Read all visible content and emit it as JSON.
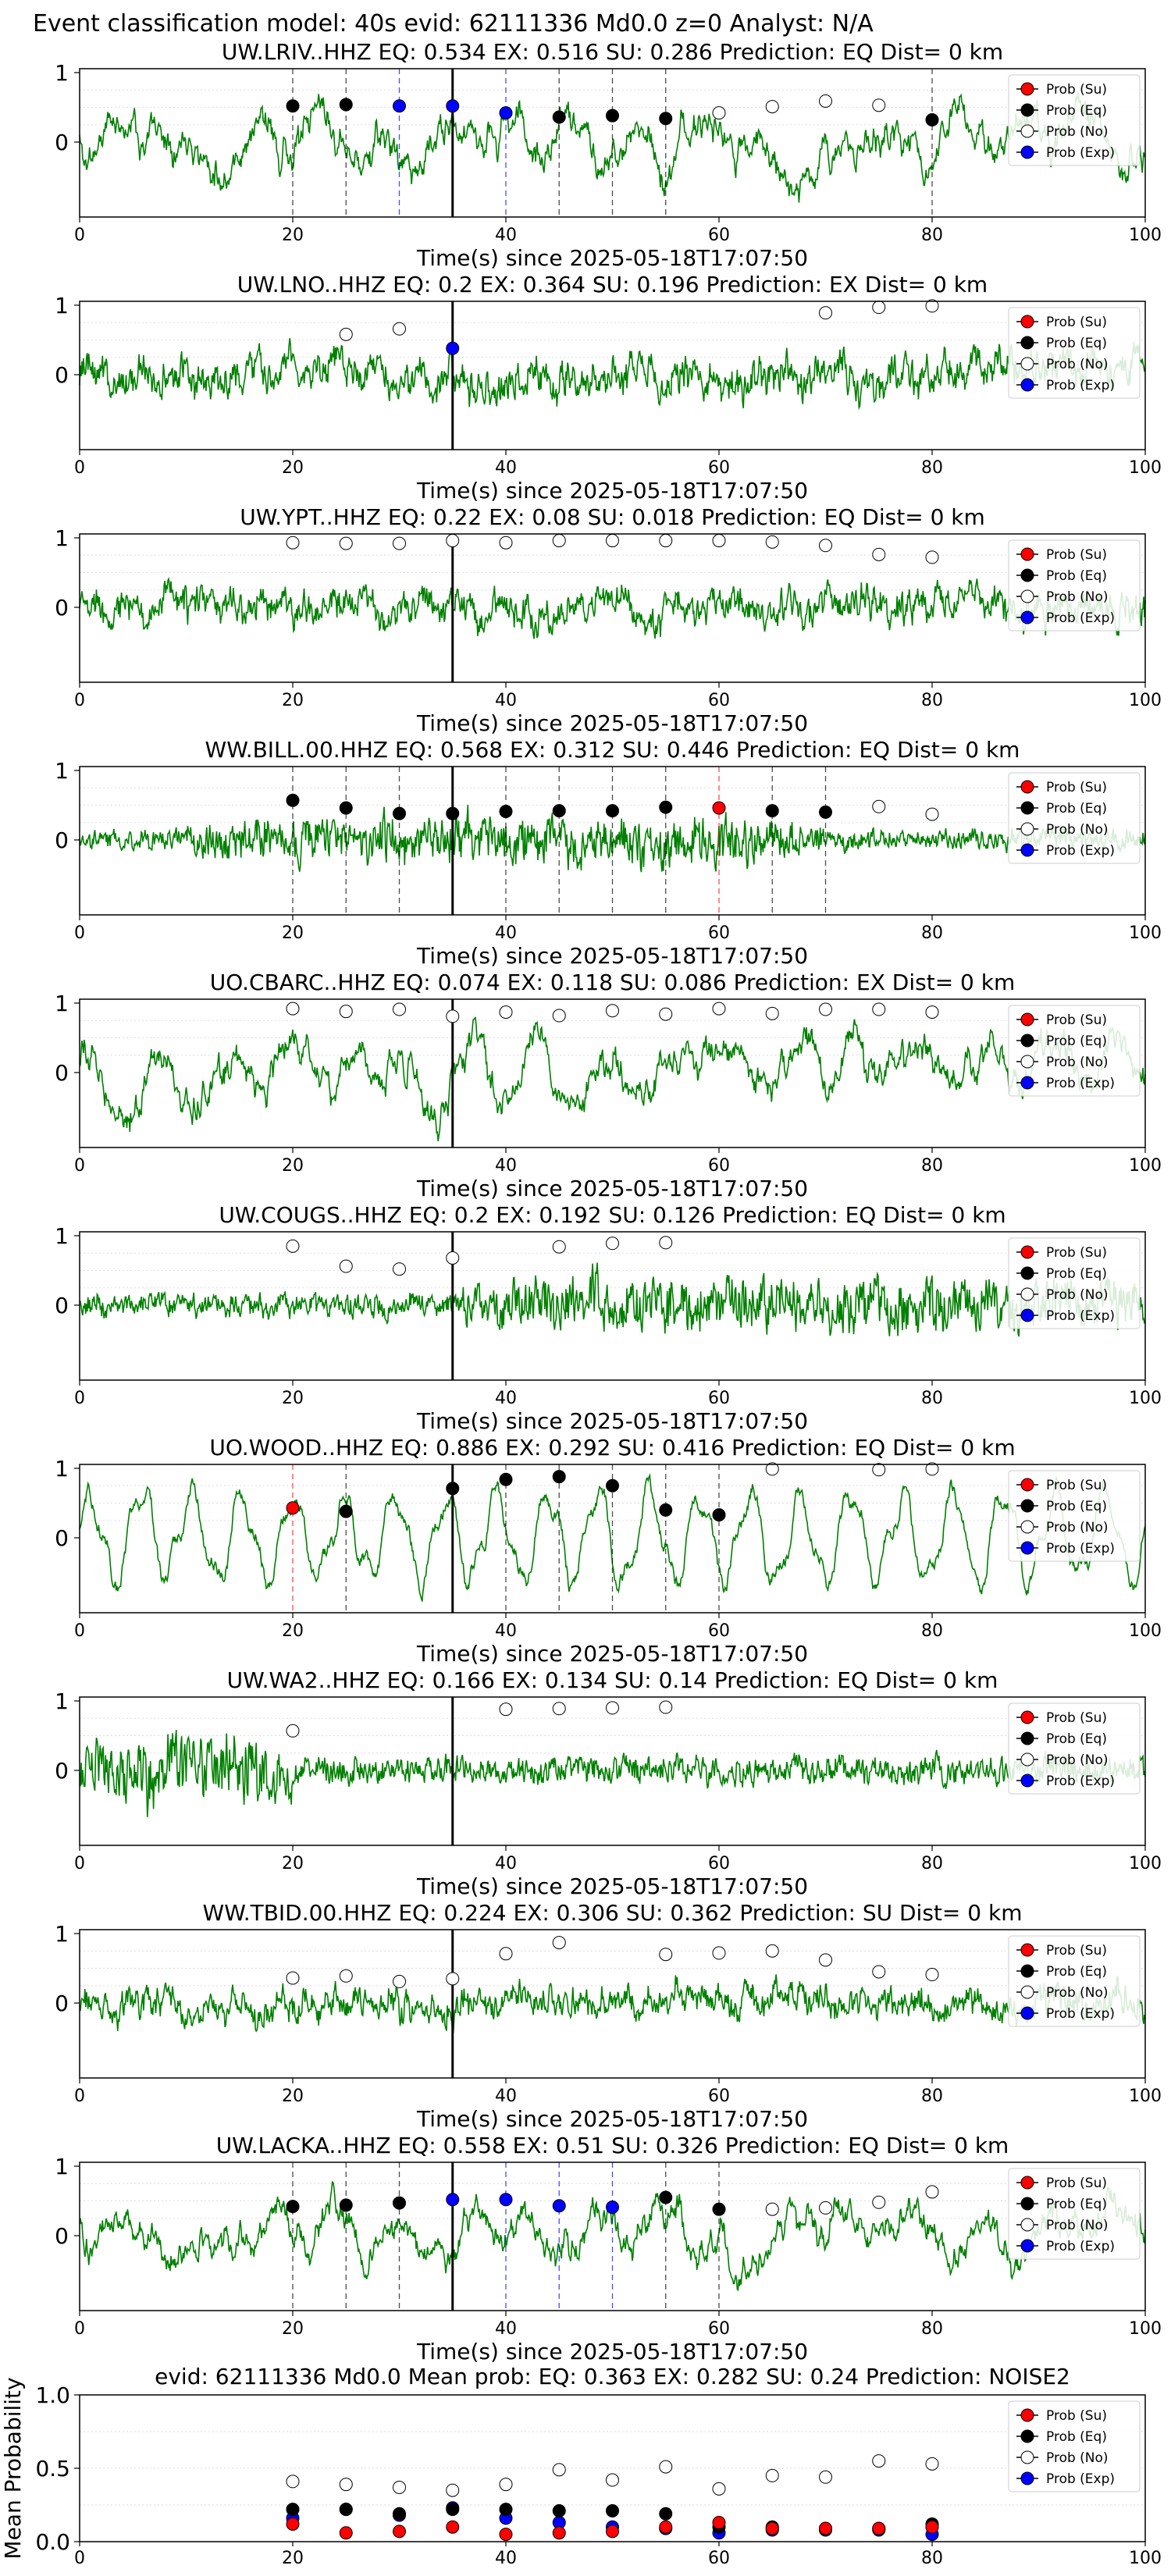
{
  "figure": {
    "suptitle": "Event classification model: 40s evid: 62111336 Md0.0 z=0 Analyst: N/A"
  },
  "legend_labels": [
    "Prob (Su)",
    "Prob (Eq)",
    "Prob (No)",
    "Prob (Exp)"
  ],
  "colors": {
    "waveform": "#008000",
    "su": "#ff0000",
    "eq": "#000000",
    "no": "#ffffff",
    "exp": "#0000ff",
    "grid": "#dddddd"
  },
  "chart_data": [
    {
      "type": "line",
      "title": "UW.LRIV..HHZ   EQ: 0.534  EX: 0.516  SU: 0.286   Prediction: EQ    Dist= 0 km",
      "xlabel": "Time(s) since 2025-05-18T17:07:50",
      "xlim": [
        0,
        100
      ],
      "xticks": [
        "0",
        "20",
        "40",
        "60",
        "80",
        "100"
      ],
      "yticks": [
        "1",
        "0"
      ],
      "arrival": 35,
      "waveform": {
        "amplitude": 0.6,
        "style": "lowfreq",
        "seed": 11
      },
      "markers": [
        {
          "t": 20,
          "c": "eq",
          "y": 0.52
        },
        {
          "t": 25,
          "c": "eq",
          "y": 0.54
        },
        {
          "t": 30,
          "c": "exp",
          "y": 0.52
        },
        {
          "t": 35,
          "c": "exp",
          "y": 0.52
        },
        {
          "t": 40,
          "c": "exp",
          "y": 0.42
        },
        {
          "t": 45,
          "c": "eq",
          "y": 0.36
        },
        {
          "t": 50,
          "c": "eq",
          "y": 0.38
        },
        {
          "t": 55,
          "c": "eq",
          "y": 0.34
        },
        {
          "t": 60,
          "c": "no",
          "y": 0.42
        },
        {
          "t": 65,
          "c": "no",
          "y": 0.51
        },
        {
          "t": 70,
          "c": "no",
          "y": 0.59
        },
        {
          "t": 75,
          "c": "no",
          "y": 0.53
        },
        {
          "t": 80,
          "c": "eq",
          "y": 0.32
        }
      ]
    },
    {
      "type": "line",
      "title": "UW.LNO..HHZ   EQ: 0.2  EX: 0.364  SU: 0.196   Prediction: EX    Dist= 0 km",
      "xlabel": "Time(s) since 2025-05-18T17:07:50",
      "xlim": [
        0,
        100
      ],
      "xticks": [
        "0",
        "20",
        "40",
        "60",
        "80",
        "100"
      ],
      "yticks": [
        "1",
        "0"
      ],
      "arrival": 35,
      "waveform": {
        "amplitude": 0.55,
        "style": "mid",
        "seed": 23
      },
      "markers": [
        {
          "t": 25,
          "c": "no",
          "y": 0.58
        },
        {
          "t": 30,
          "c": "no",
          "y": 0.66
        },
        {
          "t": 35,
          "c": "exp",
          "y": 0.38
        },
        {
          "t": 70,
          "c": "no",
          "y": 0.89
        },
        {
          "t": 75,
          "c": "no",
          "y": 0.97
        },
        {
          "t": 80,
          "c": "no",
          "y": 0.99
        }
      ]
    },
    {
      "type": "line",
      "title": "UW.YPT..HHZ   EQ: 0.22  EX: 0.08  SU: 0.018   Prediction: EQ    Dist= 0 km",
      "xlabel": "Time(s) since 2025-05-18T17:07:50",
      "xlim": [
        0,
        100
      ],
      "xticks": [
        "0",
        "20",
        "40",
        "60",
        "80",
        "100"
      ],
      "yticks": [
        "1",
        "0"
      ],
      "arrival": 35,
      "waveform": {
        "amplitude": 0.5,
        "style": "mid",
        "seed": 37
      },
      "markers": [
        {
          "t": 20,
          "c": "no",
          "y": 0.93
        },
        {
          "t": 25,
          "c": "no",
          "y": 0.92
        },
        {
          "t": 30,
          "c": "no",
          "y": 0.92
        },
        {
          "t": 35,
          "c": "no",
          "y": 0.96
        },
        {
          "t": 40,
          "c": "no",
          "y": 0.93
        },
        {
          "t": 45,
          "c": "no",
          "y": 0.96
        },
        {
          "t": 50,
          "c": "no",
          "y": 0.96
        },
        {
          "t": 55,
          "c": "no",
          "y": 0.96
        },
        {
          "t": 60,
          "c": "no",
          "y": 0.96
        },
        {
          "t": 65,
          "c": "no",
          "y": 0.94
        },
        {
          "t": 70,
          "c": "no",
          "y": 0.89
        },
        {
          "t": 75,
          "c": "no",
          "y": 0.76
        },
        {
          "t": 80,
          "c": "no",
          "y": 0.72
        }
      ]
    },
    {
      "type": "line",
      "title": "WW.BILL.00.HHZ   EQ: 0.568  EX: 0.312  SU: 0.446   Prediction: EQ    Dist= 0 km",
      "xlabel": "Time(s) since 2025-05-18T17:07:50",
      "xlim": [
        0,
        100
      ],
      "xticks": [
        "0",
        "20",
        "40",
        "60",
        "80",
        "100"
      ],
      "yticks": [
        "1",
        "0"
      ],
      "arrival": 35,
      "waveform": {
        "amplitude": 0.25,
        "style": "burst",
        "seed": 41,
        "burst": [
          [
            10,
            70,
            2.6
          ]
        ]
      },
      "markers": [
        {
          "t": 20,
          "c": "eq",
          "y": 0.57
        },
        {
          "t": 25,
          "c": "eq",
          "y": 0.46
        },
        {
          "t": 30,
          "c": "eq",
          "y": 0.38
        },
        {
          "t": 35,
          "c": "eq",
          "y": 0.38
        },
        {
          "t": 40,
          "c": "eq",
          "y": 0.41
        },
        {
          "t": 45,
          "c": "eq",
          "y": 0.42
        },
        {
          "t": 50,
          "c": "eq",
          "y": 0.42
        },
        {
          "t": 55,
          "c": "eq",
          "y": 0.47
        },
        {
          "t": 60,
          "c": "su",
          "y": 0.46
        },
        {
          "t": 65,
          "c": "eq",
          "y": 0.42
        },
        {
          "t": 70,
          "c": "eq",
          "y": 0.4
        },
        {
          "t": 75,
          "c": "no",
          "y": 0.48
        },
        {
          "t": 80,
          "c": "no",
          "y": 0.37
        }
      ]
    },
    {
      "type": "line",
      "title": "UO.CBARC..HHZ   EQ: 0.074  EX: 0.118  SU: 0.086   Prediction: EX    Dist= 0 km",
      "xlabel": "Time(s) since 2025-05-18T17:07:50",
      "xlim": [
        0,
        100
      ],
      "xticks": [
        "0",
        "20",
        "40",
        "60",
        "80",
        "100"
      ],
      "yticks": [
        "1",
        "0"
      ],
      "arrival": 35,
      "waveform": {
        "amplitude": 0.6,
        "style": "lowfreq",
        "seed": 53
      },
      "markers": [
        {
          "t": 20,
          "c": "no",
          "y": 0.92
        },
        {
          "t": 25,
          "c": "no",
          "y": 0.88
        },
        {
          "t": 30,
          "c": "no",
          "y": 0.91
        },
        {
          "t": 35,
          "c": "no",
          "y": 0.81
        },
        {
          "t": 40,
          "c": "no",
          "y": 0.87
        },
        {
          "t": 45,
          "c": "no",
          "y": 0.82
        },
        {
          "t": 50,
          "c": "no",
          "y": 0.89
        },
        {
          "t": 55,
          "c": "no",
          "y": 0.84
        },
        {
          "t": 60,
          "c": "no",
          "y": 0.92
        },
        {
          "t": 65,
          "c": "no",
          "y": 0.85
        },
        {
          "t": 70,
          "c": "no",
          "y": 0.91
        },
        {
          "t": 75,
          "c": "no",
          "y": 0.91
        },
        {
          "t": 80,
          "c": "no",
          "y": 0.87
        }
      ]
    },
    {
      "type": "line",
      "title": "UW.COUGS..HHZ   EQ: 0.2  EX: 0.192  SU: 0.126   Prediction: EQ    Dist= 0 km",
      "xlabel": "Time(s) since 2025-05-18T17:07:50",
      "xlim": [
        0,
        100
      ],
      "xticks": [
        "0",
        "20",
        "40",
        "60",
        "80",
        "100"
      ],
      "yticks": [
        "1",
        "0"
      ],
      "arrival": 35,
      "waveform": {
        "amplitude": 0.3,
        "style": "burst",
        "seed": 67,
        "burst": [
          [
            36,
            100,
            2.4
          ]
        ]
      },
      "markers": [
        {
          "t": 20,
          "c": "no",
          "y": 0.85
        },
        {
          "t": 25,
          "c": "no",
          "y": 0.56
        },
        {
          "t": 30,
          "c": "no",
          "y": 0.52
        },
        {
          "t": 35,
          "c": "no",
          "y": 0.68
        },
        {
          "t": 45,
          "c": "no",
          "y": 0.84
        },
        {
          "t": 50,
          "c": "no",
          "y": 0.89
        },
        {
          "t": 55,
          "c": "no",
          "y": 0.9
        }
      ]
    },
    {
      "type": "line",
      "title": "UO.WOOD..HHZ   EQ: 0.886  EX: 0.292  SU: 0.416   Prediction: EQ    Dist= 0 km",
      "xlabel": "Time(s) since 2025-05-18T17:07:50",
      "xlim": [
        0,
        100
      ],
      "xticks": [
        "0",
        "20",
        "40",
        "60",
        "80",
        "100"
      ],
      "yticks": [
        "1",
        "0"
      ],
      "arrival": 35,
      "waveform": {
        "amplitude": 0.7,
        "style": "sine",
        "seed": 79
      },
      "markers": [
        {
          "t": 20,
          "c": "su",
          "y": 0.43
        },
        {
          "t": 25,
          "c": "eq",
          "y": 0.38
        },
        {
          "t": 35,
          "c": "eq",
          "y": 0.71
        },
        {
          "t": 40,
          "c": "eq",
          "y": 0.84
        },
        {
          "t": 45,
          "c": "eq",
          "y": 0.88
        },
        {
          "t": 50,
          "c": "eq",
          "y": 0.75
        },
        {
          "t": 55,
          "c": "eq",
          "y": 0.4
        },
        {
          "t": 60,
          "c": "eq",
          "y": 0.33
        },
        {
          "t": 65,
          "c": "no",
          "y": 0.99
        },
        {
          "t": 75,
          "c": "no",
          "y": 0.98
        },
        {
          "t": 80,
          "c": "no",
          "y": 0.99
        }
      ]
    },
    {
      "type": "line",
      "title": "UW.WA2..HHZ   EQ: 0.166  EX: 0.134  SU: 0.14   Prediction: EQ    Dist= 0 km",
      "xlabel": "Time(s) since 2025-05-18T17:07:50",
      "xlim": [
        0,
        100
      ],
      "xticks": [
        "0",
        "20",
        "40",
        "60",
        "80",
        "100"
      ],
      "yticks": [
        "1",
        "0"
      ],
      "arrival": 35,
      "waveform": {
        "amplitude": 0.35,
        "style": "burst",
        "seed": 83,
        "burst": [
          [
            0,
            20,
            2.6
          ]
        ]
      },
      "markers": [
        {
          "t": 20,
          "c": "no",
          "y": 0.57
        },
        {
          "t": 40,
          "c": "no",
          "y": 0.88
        },
        {
          "t": 45,
          "c": "no",
          "y": 0.89
        },
        {
          "t": 50,
          "c": "no",
          "y": 0.9
        },
        {
          "t": 55,
          "c": "no",
          "y": 0.91
        }
      ]
    },
    {
      "type": "line",
      "title": "WW.TBID.00.HHZ   EQ: 0.224  EX: 0.306  SU: 0.362   Prediction: SU    Dist= 0 km",
      "xlabel": "Time(s) since 2025-05-18T17:07:50",
      "xlim": [
        0,
        100
      ],
      "xticks": [
        "0",
        "20",
        "40",
        "60",
        "80",
        "100"
      ],
      "yticks": [
        "1",
        "0"
      ],
      "arrival": 35,
      "waveform": {
        "amplitude": 0.45,
        "style": "mid",
        "seed": 97
      },
      "markers": [
        {
          "t": 20,
          "c": "no",
          "y": 0.36
        },
        {
          "t": 25,
          "c": "no",
          "y": 0.39
        },
        {
          "t": 30,
          "c": "no",
          "y": 0.31
        },
        {
          "t": 35,
          "c": "no",
          "y": 0.35
        },
        {
          "t": 40,
          "c": "no",
          "y": 0.71
        },
        {
          "t": 45,
          "c": "no",
          "y": 0.87
        },
        {
          "t": 55,
          "c": "no",
          "y": 0.7
        },
        {
          "t": 60,
          "c": "no",
          "y": 0.72
        },
        {
          "t": 65,
          "c": "no",
          "y": 0.75
        },
        {
          "t": 70,
          "c": "no",
          "y": 0.62
        },
        {
          "t": 75,
          "c": "no",
          "y": 0.45
        },
        {
          "t": 80,
          "c": "no",
          "y": 0.41
        }
      ]
    },
    {
      "type": "line",
      "title": "UW.LACKA..HHZ   EQ: 0.558  EX: 0.51  SU: 0.326   Prediction: EQ    Dist= 0 km",
      "xlabel": "Time(s) since 2025-05-18T17:07:50",
      "xlim": [
        0,
        100
      ],
      "xticks": [
        "0",
        "20",
        "40",
        "60",
        "80",
        "100"
      ],
      "yticks": [
        "1",
        "0"
      ],
      "arrival": 35,
      "waveform": {
        "amplitude": 0.55,
        "style": "lowfreq",
        "seed": 101
      },
      "markers": [
        {
          "t": 20,
          "c": "eq",
          "y": 0.42
        },
        {
          "t": 25,
          "c": "eq",
          "y": 0.44
        },
        {
          "t": 30,
          "c": "eq",
          "y": 0.47
        },
        {
          "t": 35,
          "c": "exp",
          "y": 0.52
        },
        {
          "t": 40,
          "c": "exp",
          "y": 0.52
        },
        {
          "t": 45,
          "c": "exp",
          "y": 0.43
        },
        {
          "t": 50,
          "c": "exp",
          "y": 0.41
        },
        {
          "t": 55,
          "c": "eq",
          "y": 0.55
        },
        {
          "t": 60,
          "c": "eq",
          "y": 0.38
        },
        {
          "t": 65,
          "c": "no",
          "y": 0.38
        },
        {
          "t": 70,
          "c": "no",
          "y": 0.4
        },
        {
          "t": 75,
          "c": "no",
          "y": 0.48
        },
        {
          "t": 80,
          "c": "no",
          "y": 0.63
        }
      ]
    },
    {
      "type": "scatter",
      "title": "evid: 62111336  Md0.0   Mean prob:   EQ: 0.363  EX: 0.282  SU: 0.24   Prediction: NOISE2",
      "ylabel": "Mean Probability",
      "xlim": [
        0,
        100
      ],
      "ylim": [
        0,
        1
      ],
      "xticks": [
        "0",
        "20",
        "40",
        "60",
        "80",
        "100"
      ],
      "yticks": [
        "1.0",
        "0.5",
        "0.0"
      ],
      "x": [
        20,
        25,
        30,
        35,
        40,
        45,
        50,
        55,
        60,
        65,
        70,
        75,
        80
      ],
      "series": [
        {
          "name": "Prob (No)",
          "c": "no",
          "values": [
            0.41,
            0.39,
            0.37,
            0.35,
            0.39,
            0.49,
            0.42,
            0.51,
            0.36,
            0.45,
            0.44,
            0.55,
            0.53
          ]
        },
        {
          "name": "Prob (Exp)",
          "c": "exp",
          "values": [
            0.16,
            0.22,
            0.18,
            0.23,
            0.16,
            0.13,
            0.1,
            0.09,
            0.06,
            0.08,
            0.09,
            0.08,
            0.05
          ]
        },
        {
          "name": "Prob (Eq)",
          "c": "eq",
          "values": [
            0.22,
            0.22,
            0.19,
            0.22,
            0.22,
            0.21,
            0.21,
            0.19,
            0.1,
            0.1,
            0.08,
            0.09,
            0.12
          ]
        },
        {
          "name": "Prob (Su)",
          "c": "su",
          "values": [
            0.12,
            0.06,
            0.07,
            0.1,
            0.05,
            0.06,
            0.07,
            0.1,
            0.13,
            0.09,
            0.09,
            0.09,
            0.1
          ]
        }
      ]
    }
  ]
}
